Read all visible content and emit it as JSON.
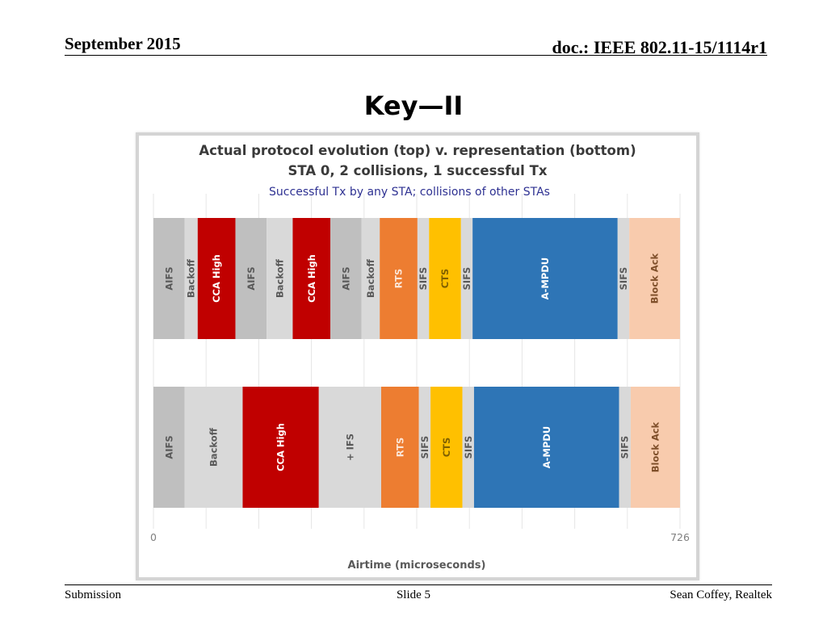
{
  "header": {
    "date": "September 2015",
    "doc": "doc.: IEEE 802.11-15/1114r1"
  },
  "slide_title": "Key—II",
  "footer": {
    "left": "Submission",
    "center": "Slide 5",
    "right": "Sean Coffey, Realtek"
  },
  "chart_data": {
    "type": "bar",
    "orientation": "horizontal",
    "stacked": true,
    "title": "Actual protocol evolution (top) v. representation (bottom)",
    "subtitle": "STA 0, 2 collisions, 1 successful Tx",
    "annotation": "Successful Tx by any STA; collisions of other STAs",
    "xlabel": "Airtime (microseconds)",
    "xlim": [
      0,
      726
    ],
    "x_ticks": [
      "0",
      "726"
    ],
    "grid": true,
    "legend": "none",
    "rows": [
      {
        "segments": [
          {
            "label": "AIFS",
            "value": 43,
            "color": "#bfbfbf"
          },
          {
            "label": "Backoff",
            "value": 18,
            "color": "#d9d9d9"
          },
          {
            "label": "CCA High",
            "value": 52,
            "color": "#c00000"
          },
          {
            "label": "AIFS",
            "value": 43,
            "color": "#bfbfbf"
          },
          {
            "label": "Backoff",
            "value": 36,
            "color": "#d9d9d9"
          },
          {
            "label": "CCA High",
            "value": 52,
            "color": "#c00000"
          },
          {
            "label": "AIFS",
            "value": 43,
            "color": "#bfbfbf"
          },
          {
            "label": "Backoff",
            "value": 25,
            "color": "#d9d9d9"
          },
          {
            "label": "RTS",
            "value": 52,
            "color": "#ed7d31"
          },
          {
            "label": "SIFS",
            "value": 16,
            "color": "#d9d9d9"
          },
          {
            "label": "CTS",
            "value": 44,
            "color": "#ffc000"
          },
          {
            "label": "SIFS",
            "value": 16,
            "color": "#d9d9d9"
          },
          {
            "label": "A-MPDU",
            "value": 200,
            "color": "#2e75b6"
          },
          {
            "label": "SIFS",
            "value": 16,
            "color": "#d9d9d9"
          },
          {
            "label": "Block Ack",
            "value": 70,
            "color": "#f8cbad"
          }
        ]
      },
      {
        "segments": [
          {
            "label": "AIFS",
            "value": 43,
            "color": "#bfbfbf"
          },
          {
            "label": "Backoff",
            "value": 80,
            "color": "#d9d9d9"
          },
          {
            "label": "CCA High",
            "value": 105,
            "color": "#c00000"
          },
          {
            "label": "+ IFS",
            "value": 86,
            "color": "#d9d9d9"
          },
          {
            "label": "RTS",
            "value": 52,
            "color": "#ed7d31"
          },
          {
            "label": "SIFS",
            "value": 16,
            "color": "#d9d9d9"
          },
          {
            "label": "CTS",
            "value": 44,
            "color": "#ffc000"
          },
          {
            "label": "SIFS",
            "value": 16,
            "color": "#d9d9d9"
          },
          {
            "label": "A-MPDU",
            "value": 200,
            "color": "#2e75b6"
          },
          {
            "label": "SIFS",
            "value": 16,
            "color": "#d9d9d9"
          },
          {
            "label": "Block Ack",
            "value": 68,
            "color": "#f8cbad"
          }
        ]
      }
    ],
    "label_colors": {
      "dark_gray": "#595959",
      "white": "#ffffff",
      "subtitle_blue": "#2e3192"
    }
  }
}
